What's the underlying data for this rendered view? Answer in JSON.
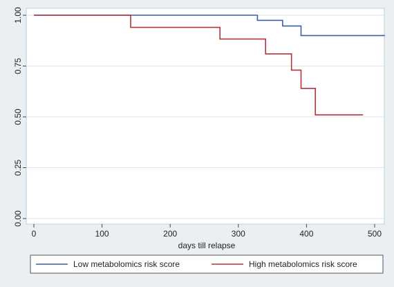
{
  "chart_data": {
    "type": "line",
    "step": true,
    "xlabel": "days till relapse",
    "ylabel": "",
    "xlim": [
      0,
      520
    ],
    "ylim": [
      0,
      1
    ],
    "xticks": [
      0,
      100,
      200,
      300,
      400,
      500
    ],
    "yticks": [
      0,
      0.25,
      0.5,
      0.75,
      1
    ],
    "xtick_labels": [
      "0",
      "100",
      "200",
      "300",
      "400",
      "500"
    ],
    "ytick_labels": [
      "0.00",
      "0.25",
      "0.50",
      "0.75",
      "1.00"
    ],
    "grid": "horizontal",
    "legend_position": "bottom",
    "series": [
      {
        "name": "Low metabolomics risk score",
        "color": "#3b5ea8",
        "x": [
          0,
          328,
          328,
          365,
          365,
          392,
          392,
          515
        ],
        "y": [
          1.0,
          1.0,
          0.975,
          0.975,
          0.947,
          0.947,
          0.9,
          0.9
        ]
      },
      {
        "name": "High metabolomics risk score",
        "color": "#b5333b",
        "x": [
          0,
          142,
          142,
          273,
          273,
          340,
          340,
          378,
          378,
          392,
          392,
          413,
          413,
          483
        ],
        "y": [
          1.0,
          1.0,
          0.94,
          0.94,
          0.883,
          0.883,
          0.81,
          0.81,
          0.73,
          0.73,
          0.64,
          0.64,
          0.51,
          0.51
        ]
      }
    ]
  }
}
